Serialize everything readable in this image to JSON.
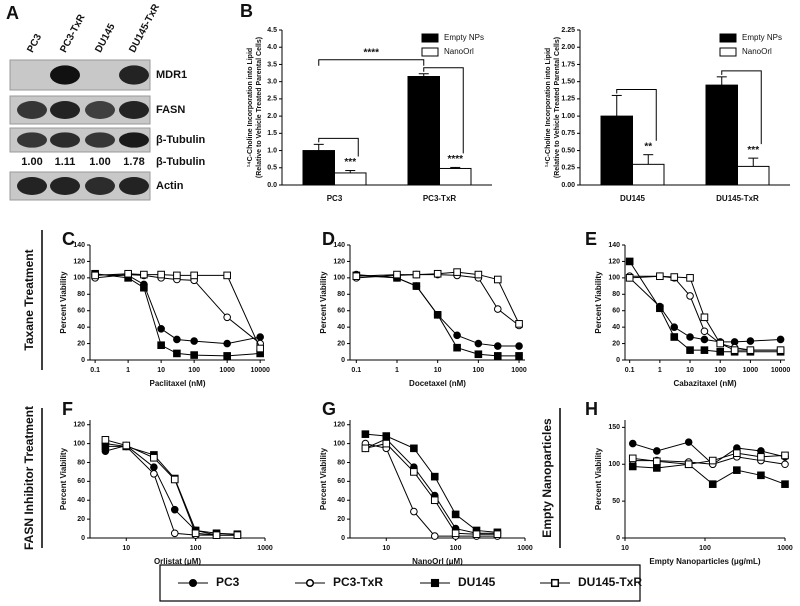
{
  "panel_labels": [
    "A",
    "B",
    "C",
    "D",
    "E",
    "F",
    "G",
    "H"
  ],
  "blot": {
    "lanes": [
      "PC3",
      "PC3-TxR",
      "DU145",
      "DU145-TxR"
    ],
    "bands": [
      "MDR1",
      "FASN",
      "β-Tubulin",
      "Actin"
    ],
    "quant_label": "β-Tubulin",
    "quant": [
      "1.00",
      "1.11",
      "1.00",
      "1.78"
    ]
  },
  "row_labels": [
    "Taxane Treatment",
    "FASN Inhibitor Treatment",
    "Empty Nanoparticles"
  ],
  "legend": {
    "entries": [
      {
        "name": "PC3",
        "marker": "circle",
        "fill": "#000000"
      },
      {
        "name": "PC3-TxR",
        "marker": "circle",
        "fill": "#ffffff"
      },
      {
        "name": "DU145",
        "marker": "square",
        "fill": "#000000"
      },
      {
        "name": "DU145-TxR",
        "marker": "square",
        "fill": "#ffffff"
      }
    ]
  },
  "chart_data": [
    {
      "type": "bar",
      "ylabel": [
        "¹⁴C-Choline Incorporation into Lipid",
        "(Relative to Vehicle Treated Parental Cells)"
      ],
      "categories": [
        "PC3",
        "PC3-TxR"
      ],
      "series": [
        {
          "name": "Empty NPs",
          "color": "#000000",
          "values": [
            1.0,
            3.15
          ],
          "errors": [
            0.18,
            0.08
          ]
        },
        {
          "name": "NanoOrl",
          "color": "#ffffff",
          "values": [
            0.35,
            0.48
          ],
          "errors": [
            0.07,
            0.03
          ],
          "stars": [
            "***",
            "****"
          ]
        }
      ],
      "comparison": "****",
      "ylim": [
        0,
        4.5
      ],
      "yticks": [
        {
          "value": 0,
          "label": "0.0"
        },
        0.5,
        {
          "value": 1,
          "label": "1.0"
        },
        1.5,
        {
          "value": 2,
          "label": "2.0"
        },
        2.5,
        {
          "value": 3,
          "label": "3.0"
        },
        3.5,
        {
          "value": 4,
          "label": "4.0"
        },
        4.5
      ]
    },
    {
      "type": "bar",
      "ylabel": [
        "¹⁴C-Choline Incorporation into Lipid",
        "(Relative to Vehicle Treated Parental Cells)"
      ],
      "categories": [
        "DU145",
        "DU145-TxR"
      ],
      "series": [
        {
          "name": "Empty NPs",
          "color": "#000000",
          "values": [
            1.0,
            1.45
          ],
          "errors": [
            0.3,
            0.12
          ]
        },
        {
          "name": "NanoOrl",
          "color": "#ffffff",
          "values": [
            0.3,
            0.27
          ],
          "errors": [
            0.14,
            0.12
          ],
          "stars": [
            "**",
            "***"
          ]
        }
      ],
      "ylim": [
        0,
        2.25
      ],
      "yticks": [
        {
          "value": 0,
          "label": "0.00"
        },
        0.25,
        {
          "value": 0.5,
          "label": "0.50"
        },
        0.75,
        {
          "value": 1,
          "label": "1.00"
        },
        1.25,
        {
          "value": 1.5,
          "label": "1.50"
        },
        1.75,
        {
          "value": 2,
          "label": "2.00"
        },
        2.25
      ]
    },
    {
      "type": "line",
      "log_x": true,
      "xlabel": "Paclitaxel (nM)",
      "ylabel": "Percent Viability",
      "x": [
        0.1,
        1,
        3,
        10,
        30,
        100,
        1000,
        10000
      ],
      "xlim": [
        0.07,
        14000
      ],
      "xticks": [
        0.1,
        1,
        10,
        100,
        1000,
        10000
      ],
      "ylim": [
        0,
        140
      ],
      "yticks": [
        0,
        20,
        40,
        60,
        80,
        100,
        120,
        140
      ],
      "series": [
        {
          "values": [
            104,
            103,
            92,
            38,
            25,
            23,
            20,
            28
          ]
        },
        {
          "values": [
            100,
            104,
            103,
            100,
            98,
            97,
            52,
            20
          ]
        },
        {
          "values": [
            105,
            100,
            88,
            18,
            8,
            6,
            5,
            8
          ]
        },
        {
          "values": [
            103,
            105,
            104,
            104,
            103,
            103,
            103,
            14
          ]
        }
      ]
    },
    {
      "type": "line",
      "log_x": true,
      "xlabel": "Docetaxel (nM)",
      "ylabel": "Percent Viability",
      "x": [
        0.1,
        1,
        3,
        10,
        30,
        100,
        300,
        1000
      ],
      "xlim": [
        0.07,
        1400
      ],
      "xticks": [
        0.1,
        1,
        10,
        100,
        1000
      ],
      "ylim": [
        0,
        140
      ],
      "yticks": [
        0,
        20,
        40,
        60,
        80,
        100,
        120,
        140
      ],
      "series": [
        {
          "values": [
            104,
            100,
            90,
            55,
            30,
            20,
            17,
            17
          ]
        },
        {
          "values": [
            100,
            103,
            104,
            104,
            103,
            100,
            62,
            42
          ]
        },
        {
          "values": [
            103,
            100,
            90,
            55,
            15,
            7,
            5,
            5
          ]
        },
        {
          "values": [
            102,
            104,
            104,
            105,
            107,
            104,
            98,
            44
          ]
        }
      ]
    },
    {
      "type": "line",
      "log_x": true,
      "xlabel": "Cabazitaxel (nM)",
      "ylabel": "Percent Viability",
      "x": [
        0.1,
        1,
        3,
        10,
        30,
        100,
        300,
        1000,
        10000
      ],
      "xlim": [
        0.07,
        14000
      ],
      "xticks": [
        0.1,
        1,
        10,
        100,
        1000,
        10000
      ],
      "ylim": [
        0,
        140
      ],
      "yticks": [
        0,
        20,
        40,
        60,
        80,
        100,
        120,
        140
      ],
      "series": [
        {
          "values": [
            100,
            65,
            40,
            28,
            25,
            22,
            22,
            23,
            25
          ]
        },
        {
          "values": [
            102,
            102,
            100,
            78,
            35,
            20,
            15,
            12,
            12
          ]
        },
        {
          "values": [
            120,
            63,
            28,
            12,
            12,
            10,
            10,
            10,
            10
          ]
        },
        {
          "values": [
            100,
            102,
            101,
            100,
            52,
            20,
            12,
            12,
            12
          ]
        }
      ]
    },
    {
      "type": "line",
      "log_x": true,
      "xlabel": "Orlistat (μM)",
      "ylabel": "Percent Viability",
      "x": [
        5,
        10,
        25,
        50,
        100,
        200,
        400
      ],
      "xlim": [
        3,
        1000
      ],
      "xticks": [
        10,
        100,
        1000
      ],
      "ylim": [
        0,
        125
      ],
      "yticks": [
        0,
        20,
        40,
        60,
        80,
        100,
        120
      ],
      "series": [
        {
          "values": [
            92,
            98,
            75,
            30,
            8,
            3,
            3
          ]
        },
        {
          "values": [
            100,
            97,
            68,
            5,
            3,
            3,
            3
          ]
        },
        {
          "values": [
            97,
            97,
            88,
            63,
            8,
            5,
            4
          ]
        },
        {
          "values": [
            104,
            98,
            85,
            62,
            5,
            3,
            3
          ]
        }
      ]
    },
    {
      "type": "line",
      "log_x": true,
      "xlabel": "NanoOrl (μM)",
      "ylabel": "Percent Viability",
      "x": [
        5,
        10,
        25,
        50,
        100,
        200,
        400
      ],
      "xlim": [
        3,
        1000
      ],
      "xticks": [
        10,
        100,
        1000
      ],
      "ylim": [
        0,
        125
      ],
      "yticks": [
        0,
        20,
        40,
        60,
        80,
        100,
        120
      ],
      "series": [
        {
          "values": [
            95,
            105,
            75,
            45,
            10,
            5,
            5
          ]
        },
        {
          "values": [
            100,
            95,
            28,
            2,
            2,
            2,
            2
          ]
        },
        {
          "values": [
            110,
            108,
            95,
            65,
            25,
            8,
            6
          ]
        },
        {
          "values": [
            95,
            100,
            70,
            40,
            5,
            4,
            4
          ]
        }
      ]
    },
    {
      "type": "line",
      "log_x": true,
      "xlabel": "Empty Nanoparticles (μg/mL)",
      "ylabel": "Percent Viability",
      "x": [
        12.5,
        25,
        62.5,
        125,
        250,
        500,
        1000
      ],
      "xlim": [
        10,
        1000
      ],
      "xticks": [
        10,
        100,
        1000
      ],
      "ylim": [
        0,
        160
      ],
      "yticks": [
        0,
        50,
        100,
        150
      ],
      "series": [
        {
          "values": [
            128,
            118,
            130,
            100,
            122,
            118,
            110
          ]
        },
        {
          "values": [
            105,
            105,
            103,
            100,
            110,
            105,
            100
          ]
        },
        {
          "values": [
            97,
            95,
            100,
            73,
            92,
            85,
            73
          ]
        },
        {
          "values": [
            108,
            104,
            100,
            105,
            115,
            110,
            112
          ]
        }
      ]
    }
  ]
}
